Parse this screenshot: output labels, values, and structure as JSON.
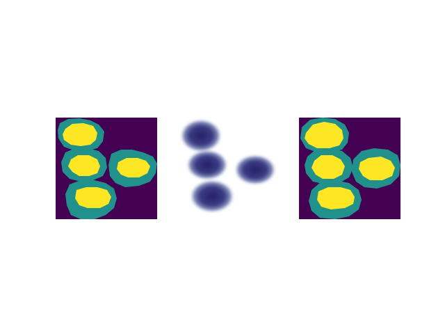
{
  "colors": {
    "background": "#440154",
    "boundary": "#21918c",
    "interior": "#fde725",
    "micrograph_cell": "#2e2a73",
    "micrograph_halo": "#9aa6c8",
    "page": "#ffffff"
  },
  "panels": [
    {
      "id": "left",
      "kind": "segmentation-mask"
    },
    {
      "id": "middle",
      "kind": "microscopy-image"
    },
    {
      "id": "right",
      "kind": "segmentation-mask"
    }
  ]
}
